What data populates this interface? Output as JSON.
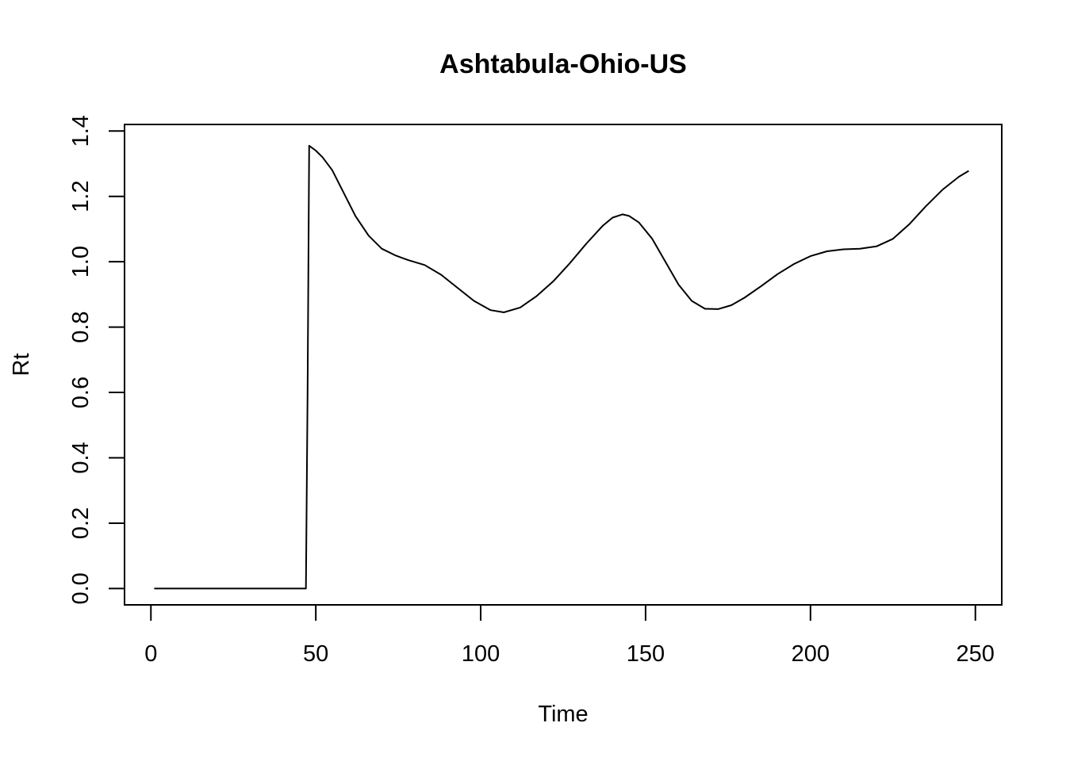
{
  "chart_data": {
    "type": "line",
    "title": "Ashtabula-Ohio-US",
    "xlabel": "Time",
    "ylabel": "Rt",
    "xlim": [
      -8,
      258
    ],
    "ylim": [
      -0.05,
      1.42
    ],
    "xticks": [
      0,
      50,
      100,
      150,
      200,
      250
    ],
    "yticks": [
      0.0,
      0.2,
      0.4,
      0.6,
      0.8,
      1.0,
      1.2,
      1.4
    ],
    "xtick_labels": [
      "0",
      "50",
      "100",
      "150",
      "200",
      "250"
    ],
    "ytick_labels": [
      "0.0",
      "0.2",
      "0.4",
      "0.6",
      "0.8",
      "1.0",
      "1.2",
      "1.4"
    ],
    "grid": false,
    "series": [
      {
        "color": "#000000",
        "x": [
          1,
          47,
          47.5,
          48,
          50,
          52,
          55,
          58,
          62,
          66,
          70,
          74,
          78,
          83,
          88,
          93,
          98,
          103,
          107,
          112,
          117,
          122,
          127,
          132,
          137,
          140,
          143,
          145,
          148,
          152,
          156,
          160,
          164,
          168,
          172,
          176,
          180,
          185,
          190,
          195,
          200,
          205,
          210,
          215,
          220,
          225,
          230,
          235,
          240,
          245,
          248
        ],
        "y": [
          0.0,
          0.0,
          0.6,
          1.355,
          1.34,
          1.32,
          1.28,
          1.22,
          1.14,
          1.08,
          1.04,
          1.02,
          1.005,
          0.99,
          0.96,
          0.92,
          0.88,
          0.852,
          0.845,
          0.86,
          0.895,
          0.94,
          0.995,
          1.055,
          1.11,
          1.135,
          1.145,
          1.14,
          1.12,
          1.07,
          1.0,
          0.93,
          0.88,
          0.856,
          0.855,
          0.867,
          0.89,
          0.925,
          0.962,
          0.993,
          1.017,
          1.032,
          1.038,
          1.04,
          1.047,
          1.07,
          1.115,
          1.17,
          1.22,
          1.26,
          1.278
        ]
      }
    ]
  }
}
